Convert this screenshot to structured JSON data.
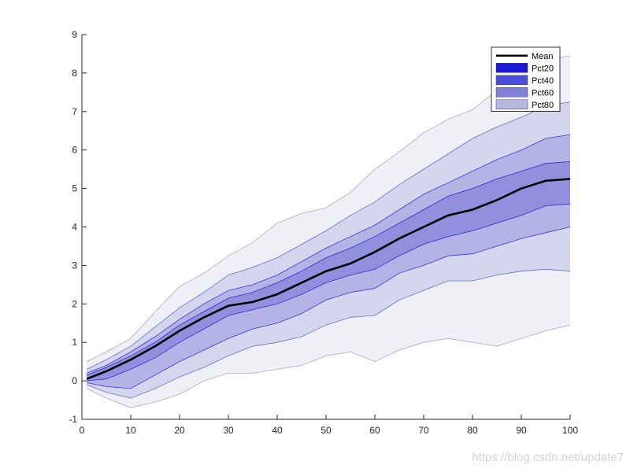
{
  "chart_data": {
    "type": "area",
    "title": "",
    "xlabel": "",
    "ylabel": "",
    "xlim": [
      0,
      100
    ],
    "ylim": [
      -1,
      9
    ],
    "xticks": [
      0,
      10,
      20,
      30,
      40,
      50,
      60,
      70,
      80,
      90,
      100
    ],
    "yticks": [
      -1,
      0,
      1,
      2,
      3,
      4,
      5,
      6,
      7,
      8,
      9
    ],
    "grid": false,
    "legend": {
      "position": "top-right",
      "entries": [
        {
          "label": "Mean",
          "kind": "line",
          "color": "#000000"
        },
        {
          "label": "Pct20",
          "kind": "patch",
          "color": "#1a1ad6"
        },
        {
          "label": "Pct40",
          "kind": "patch",
          "color": "#4d4dd9"
        },
        {
          "label": "Pct60",
          "kind": "patch",
          "color": "#8080d6"
        },
        {
          "label": "Pct80",
          "kind": "patch",
          "color": "#b8b8dc"
        }
      ]
    },
    "x": [
      1,
      5,
      10,
      15,
      20,
      25,
      30,
      35,
      40,
      45,
      50,
      55,
      60,
      65,
      70,
      75,
      80,
      85,
      90,
      95,
      100
    ],
    "mean": [
      0.05,
      0.25,
      0.55,
      0.9,
      1.3,
      1.65,
      1.95,
      2.05,
      2.25,
      2.55,
      2.85,
      3.05,
      3.35,
      3.7,
      4.0,
      4.3,
      4.45,
      4.7,
      5.0,
      5.2,
      5.25
    ],
    "bands": [
      {
        "name": "Pct80",
        "upper": [
          0.5,
          0.75,
          1.1,
          1.8,
          2.45,
          2.8,
          3.25,
          3.6,
          4.1,
          4.35,
          4.5,
          4.9,
          5.5,
          5.95,
          6.45,
          6.8,
          7.05,
          7.55,
          8.0,
          8.35,
          8.45
        ],
        "lower": [
          -0.2,
          -0.45,
          -0.7,
          -0.55,
          -0.35,
          0.0,
          0.2,
          0.2,
          0.3,
          0.4,
          0.65,
          0.75,
          0.5,
          0.8,
          1.0,
          1.1,
          1.0,
          0.9,
          1.1,
          1.3,
          1.45
        ],
        "fill": "#efeff6",
        "edge": "#a9a9d4"
      },
      {
        "name": "Pct60",
        "upper": [
          0.3,
          0.55,
          0.9,
          1.4,
          1.9,
          2.3,
          2.75,
          2.95,
          3.2,
          3.55,
          3.9,
          4.3,
          4.65,
          5.1,
          5.5,
          5.9,
          6.3,
          6.6,
          6.85,
          7.15,
          7.25
        ],
        "lower": [
          -0.1,
          -0.3,
          -0.45,
          -0.2,
          0.1,
          0.35,
          0.65,
          0.9,
          1.0,
          1.15,
          1.45,
          1.65,
          1.7,
          2.1,
          2.35,
          2.6,
          2.6,
          2.75,
          2.85,
          2.9,
          2.85
        ],
        "fill": "#d5d5ee",
        "edge": "#6a6ad6"
      },
      {
        "name": "Pct40",
        "upper": [
          0.2,
          0.4,
          0.75,
          1.15,
          1.6,
          2.0,
          2.35,
          2.5,
          2.75,
          3.1,
          3.45,
          3.75,
          4.05,
          4.45,
          4.85,
          5.15,
          5.45,
          5.75,
          6.0,
          6.3,
          6.4
        ],
        "lower": [
          -0.05,
          -0.15,
          -0.2,
          0.15,
          0.5,
          0.8,
          1.1,
          1.35,
          1.5,
          1.75,
          2.1,
          2.3,
          2.4,
          2.8,
          3.0,
          3.25,
          3.3,
          3.5,
          3.7,
          3.85,
          4.0
        ],
        "fill": "#b3b3e6",
        "edge": "#3636d6"
      },
      {
        "name": "Pct20",
        "upper": [
          0.15,
          0.35,
          0.65,
          1.0,
          1.45,
          1.8,
          2.15,
          2.3,
          2.55,
          2.85,
          3.2,
          3.45,
          3.75,
          4.1,
          4.45,
          4.8,
          5.0,
          5.25,
          5.45,
          5.65,
          5.7
        ],
        "lower": [
          0.0,
          0.05,
          0.3,
          0.6,
          1.0,
          1.35,
          1.7,
          1.85,
          2.0,
          2.25,
          2.55,
          2.75,
          2.9,
          3.25,
          3.55,
          3.75,
          3.9,
          4.1,
          4.3,
          4.55,
          4.6
        ],
        "fill": "#9090de",
        "edge": "#2a2ad0"
      }
    ]
  },
  "watermark": "https://blog.csdn.net/update7"
}
